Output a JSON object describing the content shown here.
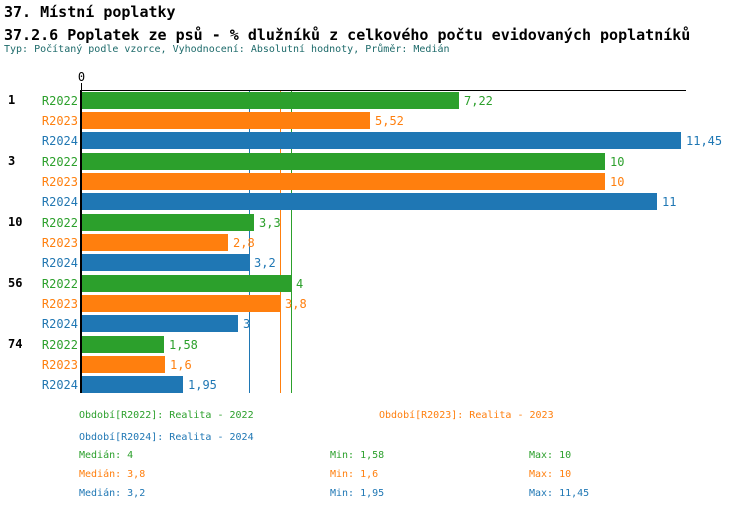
{
  "header": {
    "title": "37. Místní poplatky",
    "subtitle": "37.2.6 Poplatek ze psů - % dlužníků z celkového počtu evidovaných poplatníků",
    "meta": "Typ: Počítaný podle vzorce, Vyhodnocení: Absolutní hodnoty, Průměr: Medián"
  },
  "colors": {
    "series_r2022": "#2ca02c",
    "series_r2023": "#ff7f0e",
    "series_r2024": "#1f77b4",
    "meta_text": "#1d6a6a",
    "axis": "#000000"
  },
  "chart_data": {
    "type": "bar",
    "orientation": "horizontal",
    "xlim": [
      0,
      11.55
    ],
    "origin_tick_label": "0",
    "grid": false,
    "series": [
      "R2022",
      "R2023",
      "R2024"
    ],
    "categories": [
      "1",
      "3",
      "10",
      "56",
      "74"
    ],
    "groups": [
      {
        "category": "1",
        "bars": [
          {
            "series": "R2022",
            "value": 7.22,
            "label": "7,22"
          },
          {
            "series": "R2023",
            "value": 5.52,
            "label": "5,52"
          },
          {
            "series": "R2024",
            "value": 11.45,
            "label": "11,45"
          }
        ]
      },
      {
        "category": "3",
        "bars": [
          {
            "series": "R2022",
            "value": 10,
            "label": "10"
          },
          {
            "series": "R2023",
            "value": 10,
            "label": "10"
          },
          {
            "series": "R2024",
            "value": 11,
            "label": "11"
          }
        ]
      },
      {
        "category": "10",
        "bars": [
          {
            "series": "R2022",
            "value": 3.3,
            "label": "3,3"
          },
          {
            "series": "R2023",
            "value": 2.8,
            "label": "2,8"
          },
          {
            "series": "R2024",
            "value": 3.2,
            "label": "3,2"
          }
        ]
      },
      {
        "category": "56",
        "bars": [
          {
            "series": "R2022",
            "value": 4,
            "label": "4"
          },
          {
            "series": "R2023",
            "value": 3.8,
            "label": "3,8"
          },
          {
            "series": "R2024",
            "value": 3,
            "label": "3"
          }
        ]
      },
      {
        "category": "74",
        "bars": [
          {
            "series": "R2022",
            "value": 1.58,
            "label": "1,58"
          },
          {
            "series": "R2023",
            "value": 1.6,
            "label": "1,6"
          },
          {
            "series": "R2024",
            "value": 1.95,
            "label": "1,95"
          }
        ]
      }
    ],
    "median_lines": [
      {
        "series": "R2022",
        "value": 4
      },
      {
        "series": "R2023",
        "value": 3.8
      },
      {
        "series": "R2024",
        "value": 3.2
      }
    ]
  },
  "legend": {
    "items": [
      {
        "series": "R2022",
        "label": "Období[R2022]: Realita - 2022"
      },
      {
        "series": "R2023",
        "label": "Období[R2023]: Realita - 2023"
      },
      {
        "series": "R2024",
        "label": "Období[R2024]: Realita - 2024"
      }
    ]
  },
  "stats": {
    "rows": [
      {
        "series": "R2022",
        "median": "Medián: 4",
        "min": "Min: 1,58",
        "max": "Max: 10"
      },
      {
        "series": "R2023",
        "median": "Medián: 3,8",
        "min": "Min: 1,6",
        "max": "Max: 10"
      },
      {
        "series": "R2024",
        "median": "Medián: 3,2",
        "min": "Min: 1,95",
        "max": "Max: 11,45"
      }
    ]
  }
}
